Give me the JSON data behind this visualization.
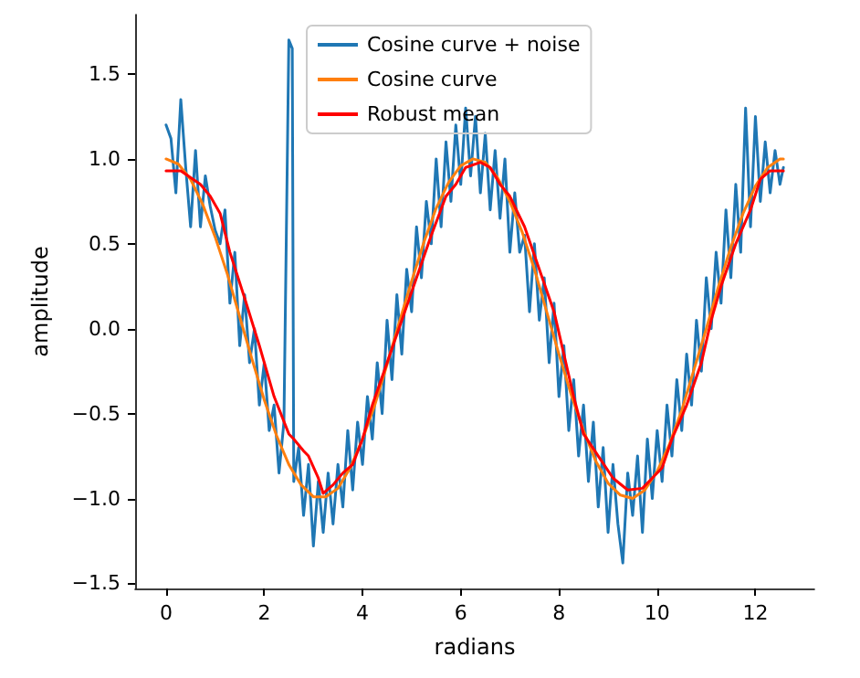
{
  "chart_data": {
    "type": "line",
    "xlabel": "radians",
    "ylabel": "amplitude",
    "xlim": [
      -0.63,
      13.2
    ],
    "ylim": [
      -1.53,
      1.85
    ],
    "xticks": [
      0,
      2,
      4,
      6,
      8,
      10,
      12
    ],
    "yticks": [
      {
        "value": -1.5,
        "label": "−1.5"
      },
      {
        "value": -1,
        "label": "−1.0"
      },
      {
        "value": -0.5,
        "label": "−0.5"
      },
      {
        "value": 0,
        "label": "0.0"
      },
      {
        "value": 0.5,
        "label": "0.5"
      },
      {
        "value": 1,
        "label": "1.0"
      },
      {
        "value": 1.5,
        "label": "1.5"
      }
    ],
    "grid": false,
    "legend": "top",
    "marker": "none",
    "line_style": "solid",
    "series": [
      {
        "name": "Cosine curve + noise",
        "color": "#1f77b4",
        "x": [
          0,
          0.1,
          0.2,
          0.3,
          0.4,
          0.5,
          0.6,
          0.7,
          0.8,
          0.9,
          1.0,
          1.1,
          1.2,
          1.3,
          1.4,
          1.5,
          1.6,
          1.7,
          1.8,
          1.9,
          2.0,
          2.1,
          2.2,
          2.3,
          2.4,
          2.5,
          2.57,
          2.6,
          2.7,
          2.8,
          2.9,
          3.0,
          3.1,
          3.2,
          3.3,
          3.4,
          3.5,
          3.6,
          3.7,
          3.8,
          3.9,
          4.0,
          4.1,
          4.2,
          4.3,
          4.4,
          4.5,
          4.6,
          4.7,
          4.8,
          4.9,
          5.0,
          5.1,
          5.2,
          5.3,
          5.4,
          5.5,
          5.6,
          5.7,
          5.8,
          5.9,
          6.0,
          6.1,
          6.2,
          6.3,
          6.4,
          6.5,
          6.6,
          6.7,
          6.8,
          6.9,
          7.0,
          7.1,
          7.2,
          7.3,
          7.4,
          7.5,
          7.6,
          7.7,
          7.8,
          7.9,
          8.0,
          8.1,
          8.2,
          8.3,
          8.4,
          8.5,
          8.6,
          8.7,
          8.8,
          8.9,
          9.0,
          9.1,
          9.2,
          9.3,
          9.4,
          9.5,
          9.6,
          9.7,
          9.8,
          9.9,
          10.0,
          10.1,
          10.2,
          10.3,
          10.4,
          10.5,
          10.6,
          10.7,
          10.8,
          10.9,
          11.0,
          11.1,
          11.2,
          11.3,
          11.4,
          11.5,
          11.6,
          11.7,
          11.8,
          11.9,
          12.0,
          12.1,
          12.2,
          12.3,
          12.4,
          12.5,
          12.57
        ],
        "values": [
          1.2,
          1.12,
          0.8,
          1.35,
          0.95,
          0.6,
          1.05,
          0.6,
          0.9,
          0.72,
          0.58,
          0.5,
          0.7,
          0.15,
          0.45,
          -0.1,
          0.2,
          -0.2,
          0,
          -0.45,
          -0.2,
          -0.6,
          -0.45,
          -0.85,
          -0.55,
          1.7,
          1.65,
          -0.9,
          -0.7,
          -1.1,
          -0.8,
          -1.28,
          -0.9,
          -1.2,
          -0.85,
          -1.15,
          -0.8,
          -1.05,
          -0.6,
          -0.95,
          -0.55,
          -0.8,
          -0.4,
          -0.65,
          -0.2,
          -0.5,
          0.05,
          -0.3,
          0.2,
          -0.15,
          0.35,
          0.1,
          0.6,
          0.3,
          0.75,
          0.5,
          1.0,
          0.6,
          1.1,
          0.75,
          1.2,
          0.85,
          1.3,
          0.9,
          1.25,
          0.8,
          1.15,
          0.7,
          1.05,
          0.65,
          1.0,
          0.45,
          0.8,
          0.45,
          0.55,
          0.1,
          0.5,
          0.05,
          0.3,
          -0.2,
          0.15,
          -0.4,
          -0.1,
          -0.6,
          -0.3,
          -0.75,
          -0.45,
          -0.9,
          -0.55,
          -1.05,
          -0.7,
          -1.2,
          -0.8,
          -1.15,
          -1.38,
          -0.85,
          -1.1,
          -0.75,
          -1.2,
          -0.65,
          -1.0,
          -0.6,
          -0.9,
          -0.45,
          -0.75,
          -0.3,
          -0.6,
          -0.15,
          -0.45,
          0.05,
          -0.25,
          0.3,
          0,
          0.45,
          0.15,
          0.7,
          0.3,
          0.85,
          0.45,
          1.3,
          0.6,
          1.25,
          0.75,
          1.1,
          0.8,
          1.05,
          0.85,
          0.95
        ]
      },
      {
        "name": "Cosine curve",
        "color": "#ff7f0e",
        "x": [
          0,
          0.25,
          0.5,
          0.75,
          1,
          1.25,
          1.5,
          1.75,
          2,
          2.25,
          2.5,
          2.75,
          3,
          3.25,
          3.5,
          3.75,
          4,
          4.25,
          4.5,
          4.75,
          5,
          5.25,
          5.5,
          5.75,
          6,
          6.25,
          6.5,
          6.75,
          7,
          7.25,
          7.5,
          7.75,
          8,
          8.25,
          8.5,
          8.75,
          9,
          9.25,
          9.5,
          9.75,
          10,
          10.25,
          10.5,
          10.75,
          11,
          11.25,
          11.5,
          11.75,
          12,
          12.25,
          12.5,
          12.57
        ],
        "values": [
          1,
          0.97,
          0.88,
          0.73,
          0.54,
          0.32,
          0.07,
          -0.18,
          -0.42,
          -0.63,
          -0.8,
          -0.92,
          -0.99,
          -0.99,
          -0.94,
          -0.82,
          -0.65,
          -0.45,
          -0.21,
          0.04,
          0.28,
          0.51,
          0.71,
          0.86,
          0.96,
          1,
          0.98,
          0.89,
          0.75,
          0.57,
          0.35,
          0.1,
          -0.15,
          -0.39,
          -0.6,
          -0.78,
          -0.91,
          -0.98,
          -1,
          -0.95,
          -0.84,
          -0.68,
          -0.48,
          -0.24,
          0,
          0.25,
          0.48,
          0.68,
          0.84,
          0.95,
          1,
          1
        ]
      },
      {
        "name": "Robust mean",
        "color": "#ff0000",
        "x": [
          0,
          0.3,
          0.7,
          0.9,
          1.1,
          1.3,
          1.6,
          1.9,
          2.2,
          2.5,
          2.6,
          2.8,
          2.9,
          3.1,
          3.2,
          3.4,
          3.6,
          3.8,
          4.0,
          4.2,
          4.5,
          4.8,
          5.1,
          5.4,
          5.7,
          5.9,
          6.1,
          6.4,
          6.6,
          6.8,
          7.0,
          7.3,
          7.6,
          7.9,
          8.1,
          8.3,
          8.5,
          8.8,
          9.1,
          9.4,
          9.7,
          9.9,
          10.1,
          10.3,
          10.6,
          10.9,
          11.1,
          11.3,
          11.6,
          11.9,
          12.1,
          12.3,
          12.57
        ],
        "values": [
          0.93,
          0.93,
          0.85,
          0.78,
          0.68,
          0.45,
          0.18,
          -0.1,
          -0.4,
          -0.62,
          -0.65,
          -0.72,
          -0.75,
          -0.88,
          -0.97,
          -0.92,
          -0.85,
          -0.8,
          -0.65,
          -0.45,
          -0.2,
          0.05,
          0.3,
          0.55,
          0.78,
          0.85,
          0.95,
          0.98,
          0.95,
          0.85,
          0.78,
          0.6,
          0.35,
          0.1,
          -0.15,
          -0.4,
          -0.62,
          -0.75,
          -0.88,
          -0.95,
          -0.94,
          -0.88,
          -0.82,
          -0.65,
          -0.45,
          -0.2,
          0.05,
          0.25,
          0.5,
          0.7,
          0.88,
          0.93,
          0.93
        ]
      }
    ]
  }
}
